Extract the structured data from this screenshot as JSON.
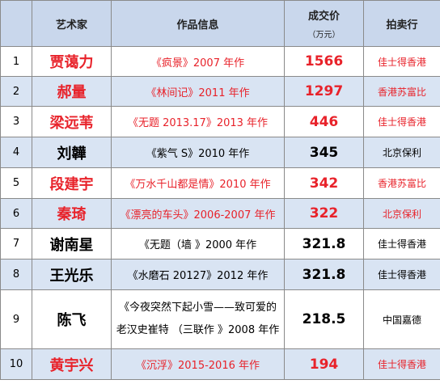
{
  "headers": {
    "index": "",
    "artist": "艺术家",
    "work": "作品信息",
    "price": "成交价",
    "price_unit": "（万元）",
    "auction_house": "拍卖行"
  },
  "rows": [
    {
      "index": "1",
      "artist": "贾蔼力",
      "work": "《疯景》2007 年作",
      "price": "1566",
      "house": "佳士得香港",
      "highlight": true
    },
    {
      "index": "2",
      "artist": "郝量",
      "work": "《林间记》2011 年作",
      "price": "1297",
      "house": "香港苏富比",
      "highlight": true
    },
    {
      "index": "3",
      "artist": "梁远苇",
      "work": "《无题 2013.17》2013 年作",
      "price": "446",
      "house": "佳士得香港",
      "highlight": true
    },
    {
      "index": "4",
      "artist": "刘韡",
      "work": "《紫气 S》2010 年作",
      "price": "345",
      "house": "北京保利",
      "highlight": false
    },
    {
      "index": "5",
      "artist": "段建宇",
      "work": "《万水千山都是情》2010 年作",
      "price": "342",
      "house": "香港苏富比",
      "highlight": true
    },
    {
      "index": "6",
      "artist": "秦琦",
      "work": "《漂亮的车头》2006-2007 年作",
      "price": "322",
      "house": "北京保利",
      "highlight": true
    },
    {
      "index": "7",
      "artist": "谢南星",
      "work": "《无题（墙 》2000 年作",
      "price": "321.8",
      "house": "佳士得香港",
      "highlight": false
    },
    {
      "index": "8",
      "artist": "王光乐",
      "work": "《水磨石  20127》2012 年作",
      "price": "321.8",
      "house": "佳士得香港",
      "highlight": false
    },
    {
      "index": "9",
      "artist": "陈飞",
      "work": "《今夜突然下起小雪——致可爱的老汉史崔特 （三联作 》2008 年作",
      "price": "218.5",
      "house": "中国嘉德",
      "highlight": false
    },
    {
      "index": "10",
      "artist": "黄宇兴",
      "work": "《沉浮》2015-2016 年作",
      "price": "194",
      "house": "佳士得香港",
      "highlight": true
    }
  ]
}
